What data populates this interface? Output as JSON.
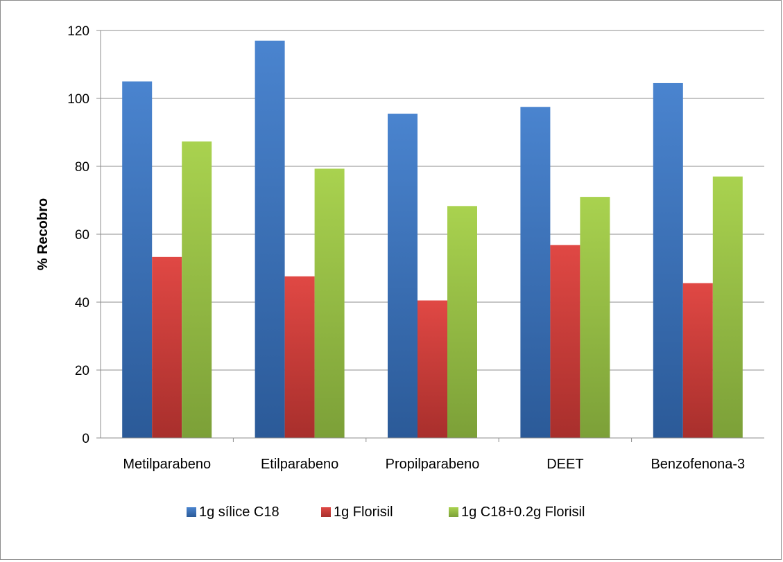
{
  "chart_data": {
    "type": "bar",
    "title": "",
    "xlabel": "",
    "ylabel": "% Recobro",
    "ylim": [
      0,
      120
    ],
    "yticks": [
      0,
      20,
      40,
      60,
      80,
      100,
      120
    ],
    "grid": true,
    "legend_position": "bottom",
    "categories": [
      "Metilparabeno",
      "Etilparabeno",
      "Propilparabeno",
      "DEET",
      "Benzofenona-3"
    ],
    "series": [
      {
        "name": "1g sílice C18",
        "color": "#3a6fb5",
        "values": [
          105,
          117,
          95.5,
          97.5,
          104.5
        ]
      },
      {
        "name": "1g Florisil",
        "color": "#cc3d3a",
        "values": [
          53.3,
          47.6,
          40.5,
          56.8,
          45.6
        ]
      },
      {
        "name": "1g C18+0.2g Florisil",
        "color": "#95bd45",
        "values": [
          87.3,
          79.3,
          68.3,
          71.0,
          77.0
        ]
      }
    ]
  }
}
